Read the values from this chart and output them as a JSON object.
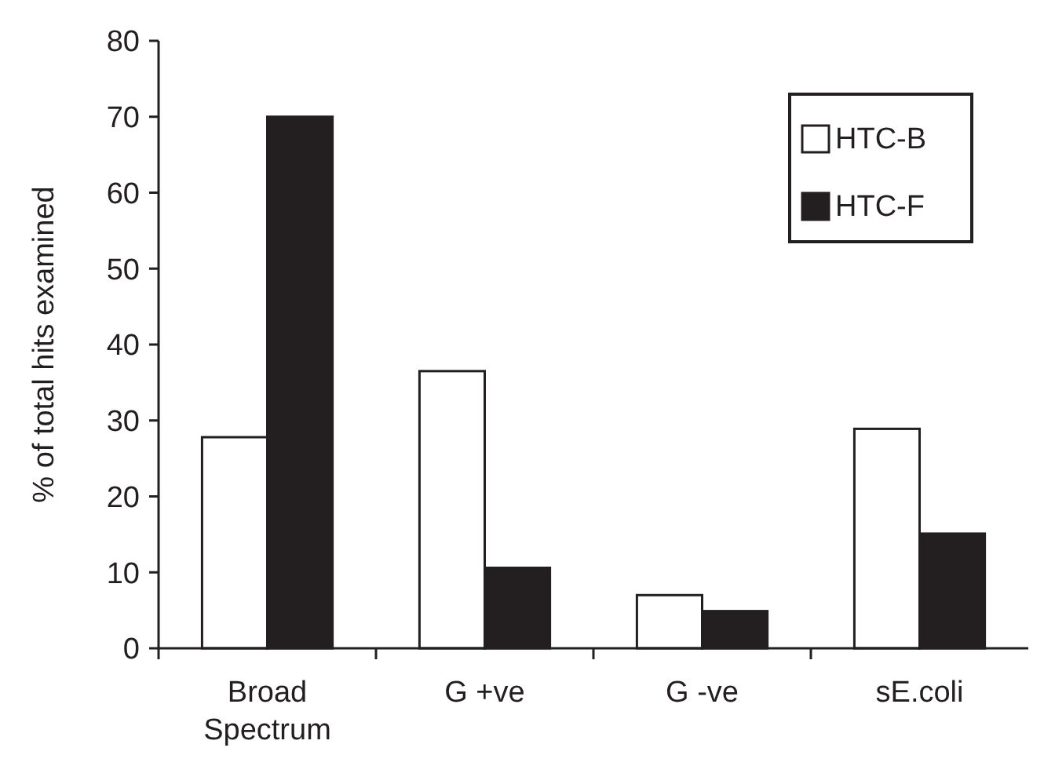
{
  "chart_data": {
    "type": "bar",
    "ylabel": "% of total hits examined",
    "categories": [
      "Broad Spectrum",
      "G +ve",
      "G -ve",
      "sE.coli"
    ],
    "series": [
      {
        "name": "HTC-B",
        "color": "#ffffff",
        "values": [
          27.8,
          36.5,
          7.0,
          28.9
        ]
      },
      {
        "name": "HTC-F",
        "color": "#231f20",
        "values": [
          70,
          10.6,
          4.9,
          15.1
        ]
      }
    ],
    "ylim": [
      0,
      80
    ],
    "yticks": [
      0,
      10,
      20,
      30,
      40,
      50,
      60,
      70,
      80
    ],
    "grid": false,
    "legend": "top right"
  }
}
